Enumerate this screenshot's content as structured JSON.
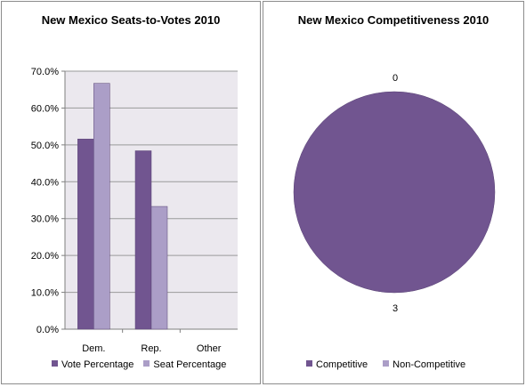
{
  "chart_data": [
    {
      "type": "bar",
      "title": "New Mexico Seats-to-Votes 2010",
      "categories": [
        "Dem.",
        "Rep.",
        "Other"
      ],
      "series": [
        {
          "name": "Vote Percentage",
          "values": [
            51.6,
            48.4,
            0
          ],
          "color": "#715590"
        },
        {
          "name": "Seat Percentage",
          "values": [
            66.7,
            33.3,
            0
          ],
          "color": "#ab9ec7"
        }
      ],
      "ylim": [
        0,
        70
      ],
      "yticks": [
        "0.0%",
        "10.0%",
        "20.0%",
        "30.0%",
        "40.0%",
        "50.0%",
        "60.0%",
        "70.0%"
      ],
      "grid": true,
      "legend": "bottom",
      "plot_background": "#ebe8ee"
    },
    {
      "type": "pie",
      "title": "New Mexico Competitiveness 2010",
      "labels": [
        "Competitive",
        "Non-Competitive"
      ],
      "values": [
        3,
        0
      ],
      "value_labels": [
        "3",
        "0"
      ],
      "colors": [
        "#715590",
        "#ab9ec7"
      ],
      "legend": "bottom"
    }
  ]
}
